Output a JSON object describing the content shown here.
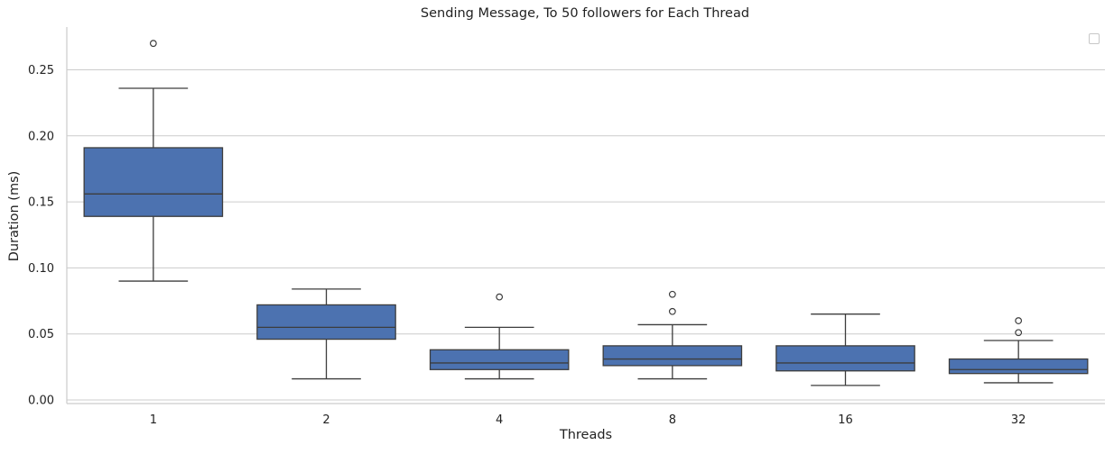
{
  "chart_data": {
    "type": "box",
    "title": "Sending Message, To 50 followers for Each Thread",
    "xlabel": "Threads",
    "ylabel": "Duration (ms)",
    "categories": [
      "1",
      "2",
      "4",
      "8",
      "16",
      "32"
    ],
    "ylim": [
      0,
      0.28
    ],
    "yticks": [
      0.0,
      0.05,
      0.1,
      0.15,
      0.2,
      0.25
    ],
    "ytick_labels": [
      "0.00",
      "0.05",
      "0.10",
      "0.15",
      "0.20",
      "0.25"
    ],
    "grid": "horizontal",
    "legend": "top-right (empty)",
    "colors": {
      "box_fill": "#4c72b0",
      "line": "#3d3d3d",
      "grid": "#cccccc"
    },
    "boxes": [
      {
        "category": "1",
        "whisker_low": 0.09,
        "q1": 0.139,
        "median": 0.156,
        "q3": 0.191,
        "whisker_high": 0.236,
        "outliers": [
          0.27
        ]
      },
      {
        "category": "2",
        "whisker_low": 0.016,
        "q1": 0.046,
        "median": 0.055,
        "q3": 0.072,
        "whisker_high": 0.084,
        "outliers": []
      },
      {
        "category": "4",
        "whisker_low": 0.016,
        "q1": 0.023,
        "median": 0.028,
        "q3": 0.038,
        "whisker_high": 0.055,
        "outliers": [
          0.078
        ]
      },
      {
        "category": "8",
        "whisker_low": 0.016,
        "q1": 0.026,
        "median": 0.031,
        "q3": 0.041,
        "whisker_high": 0.057,
        "outliers": [
          0.067,
          0.08
        ]
      },
      {
        "category": "16",
        "whisker_low": 0.011,
        "q1": 0.022,
        "median": 0.028,
        "q3": 0.041,
        "whisker_high": 0.065,
        "outliers": []
      },
      {
        "category": "32",
        "whisker_low": 0.013,
        "q1": 0.02,
        "median": 0.023,
        "q3": 0.031,
        "whisker_high": 0.045,
        "outliers": [
          0.051,
          0.06
        ]
      }
    ]
  }
}
